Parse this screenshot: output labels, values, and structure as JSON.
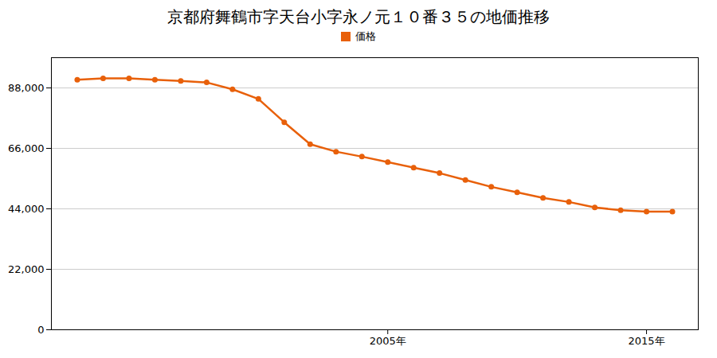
{
  "chart_data": {
    "type": "line",
    "title": "京都府舞鶴市字天台小字永ノ元１０番３５の地価推移",
    "x": [
      1993,
      1994,
      1995,
      1996,
      1997,
      1998,
      1999,
      2000,
      2001,
      2002,
      2003,
      2004,
      2005,
      2006,
      2007,
      2008,
      2009,
      2010,
      2011,
      2012,
      2013,
      2014,
      2015,
      2016
    ],
    "series": [
      {
        "name": "価格",
        "color": "#e8600a",
        "marker": "circle",
        "values": [
          91000,
          91500,
          91500,
          91000,
          90500,
          90000,
          87500,
          84000,
          75500,
          67500,
          64800,
          63000,
          61000,
          59000,
          57000,
          54500,
          52000,
          50000,
          48000,
          46500,
          44500,
          43500,
          43000,
          43000
        ]
      }
    ],
    "xlim": [
      1992,
      2017
    ],
    "xticks": [
      {
        "value": 2005,
        "label": "2005年"
      },
      {
        "value": 2015,
        "label": "2015年"
      }
    ],
    "ylim": [
      0,
      99000
    ],
    "yticks": [
      0,
      {
        "value": 22000,
        "label": "22,000"
      },
      {
        "value": 44000,
        "label": "44,000"
      },
      {
        "value": 66000,
        "label": "66,000"
      },
      {
        "value": 88000,
        "label": "88,000"
      }
    ],
    "grid": true,
    "legend": "top"
  }
}
